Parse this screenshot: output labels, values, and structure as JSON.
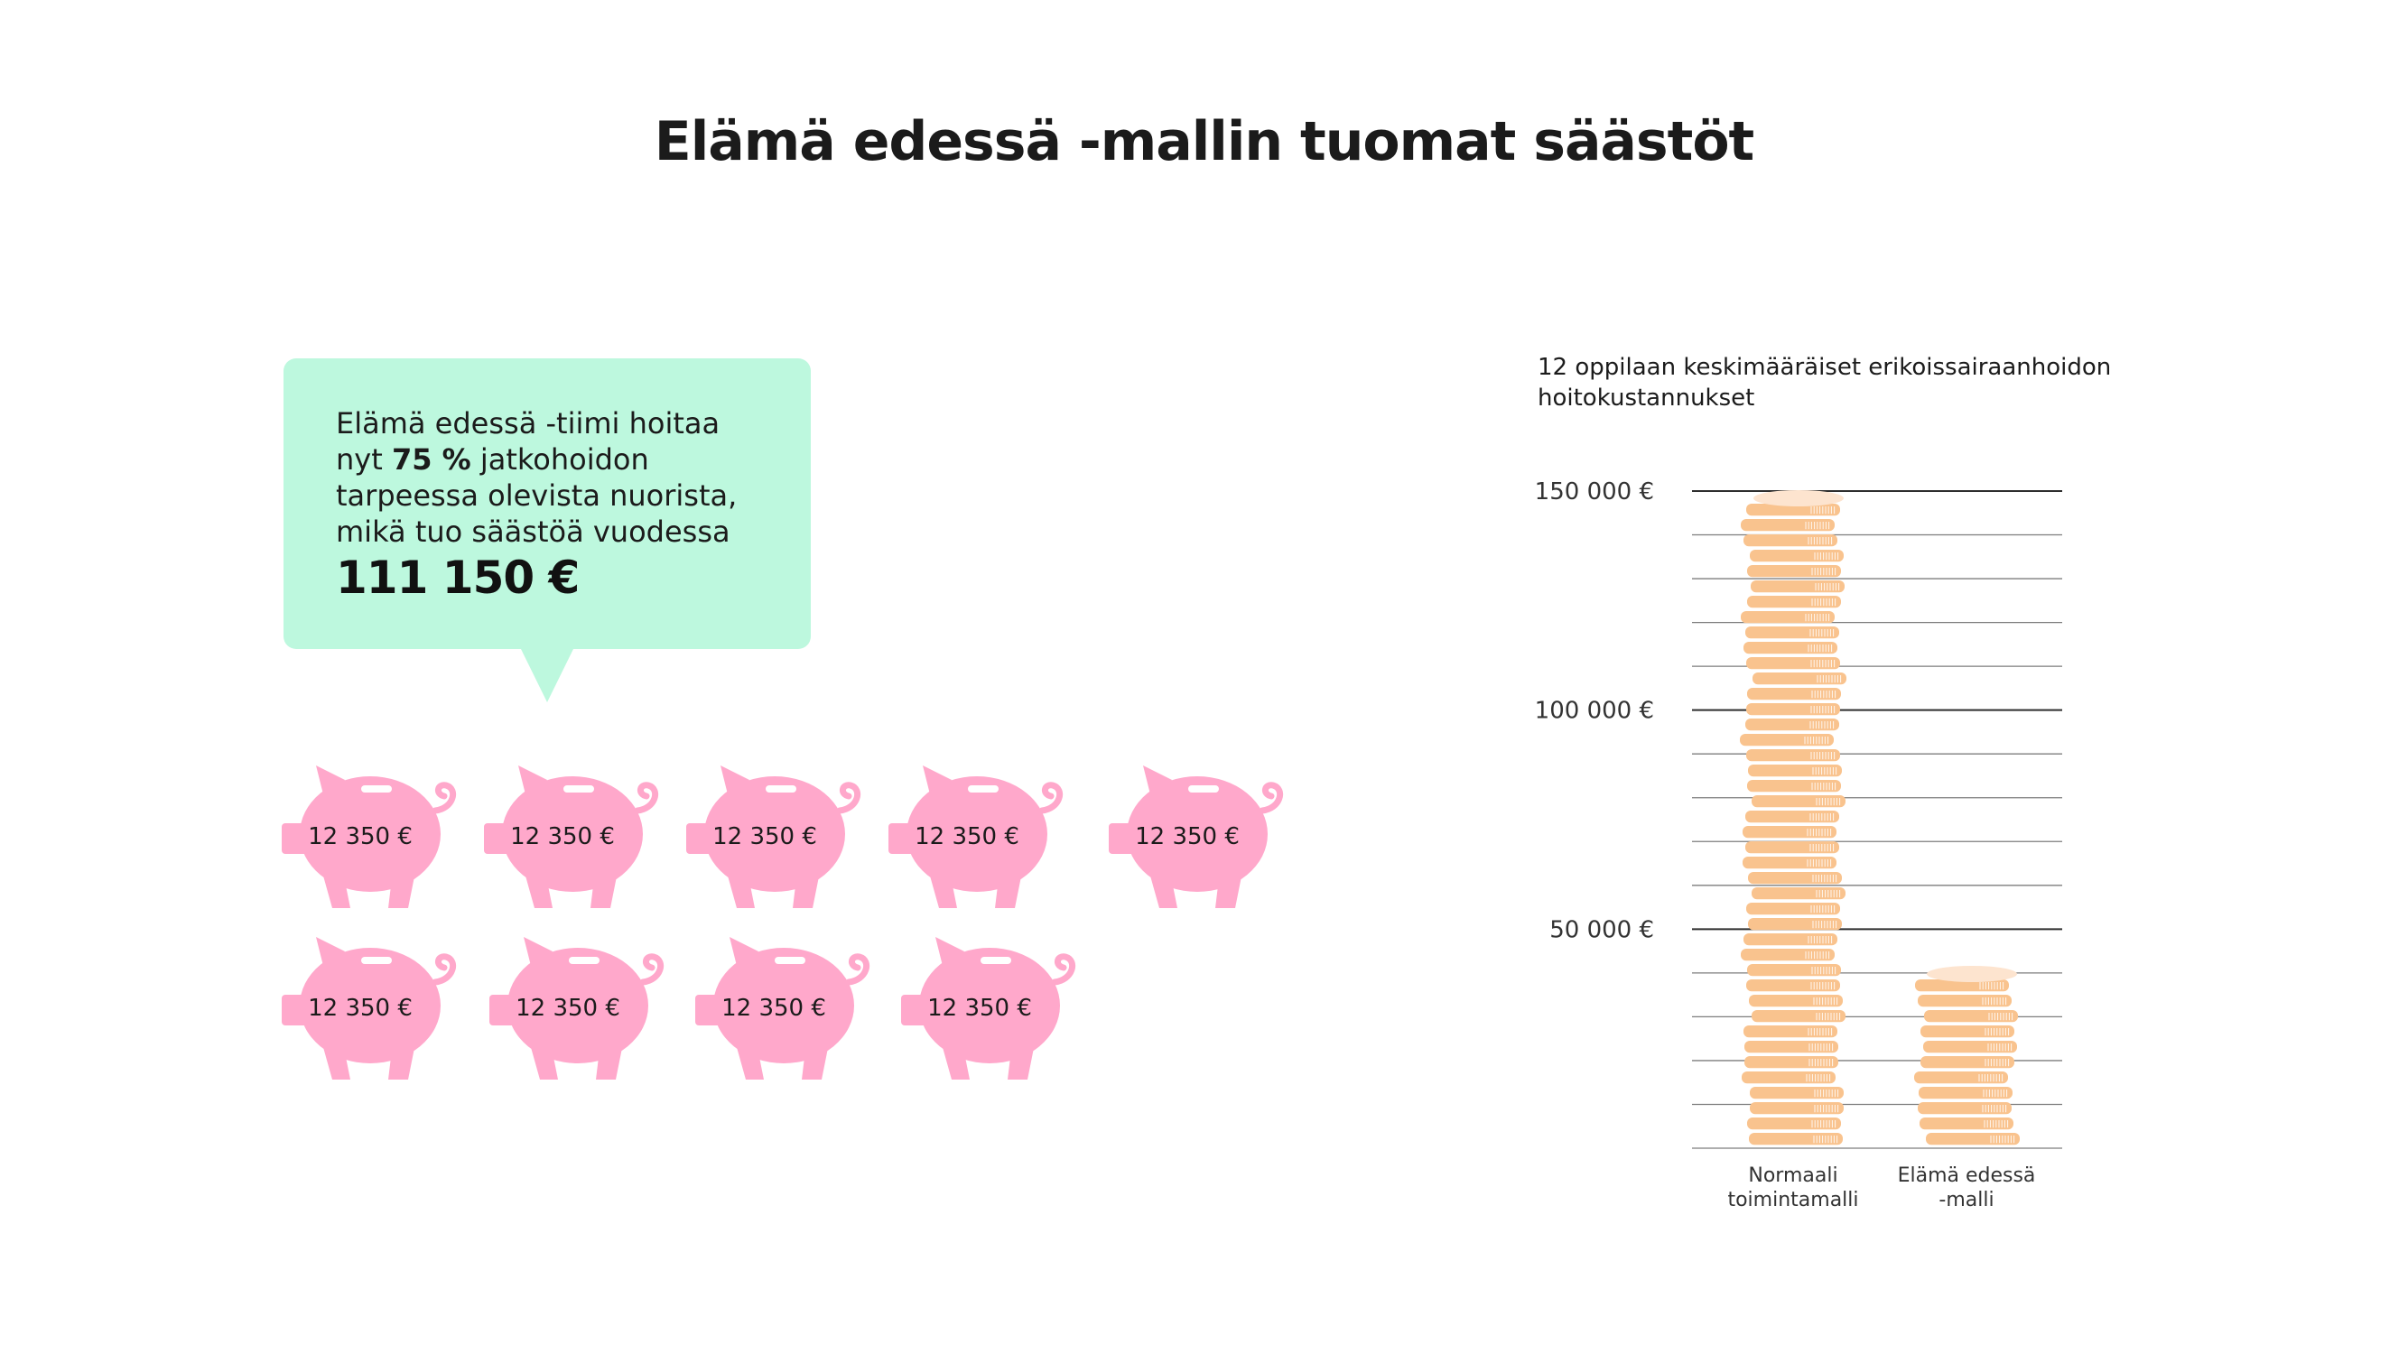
{
  "title": "Elämä edessä -mallin tuomat säästöt",
  "bubble": {
    "line1": "Elämä edessä -tiimi hoitaa",
    "line2_before": "nyt ",
    "line2_bold": "75 %",
    "line2_after": " jatkohoidon",
    "line3": "tarpeessa olevista nuorista,",
    "line4": "mikä tuo säästöä vuodessa",
    "amount": "111 150 €"
  },
  "piggy_banks": {
    "label": "12 350 €",
    "count": 9,
    "color": "#ffa8cb"
  },
  "chart_data": {
    "type": "bar",
    "title": "12 oppilaan keskimääräiset erikoissairaanhoidon hoitokustannukset",
    "title_lines": [
      "12 oppilaan keskimääräiset erikoissairaanhoidon",
      "hoitokustannukset"
    ],
    "categories": [
      "Normaali toimintamalli",
      "Elämä edessä -malli"
    ],
    "category_lines": [
      [
        "Normaali",
        "toimintamalli"
      ],
      [
        "Elämä edessä",
        "-malli"
      ]
    ],
    "values": [
      148200,
      37050
    ],
    "ylim": [
      0,
      150000
    ],
    "yticks": [
      50000,
      100000,
      150000
    ],
    "ytick_labels": [
      "50 000 €",
      "100 000 €",
      "150 000 €"
    ],
    "minor_grid_step": 10000,
    "mark_style": "stacked coins",
    "coin_color": "#f9c38e",
    "grid": true
  }
}
